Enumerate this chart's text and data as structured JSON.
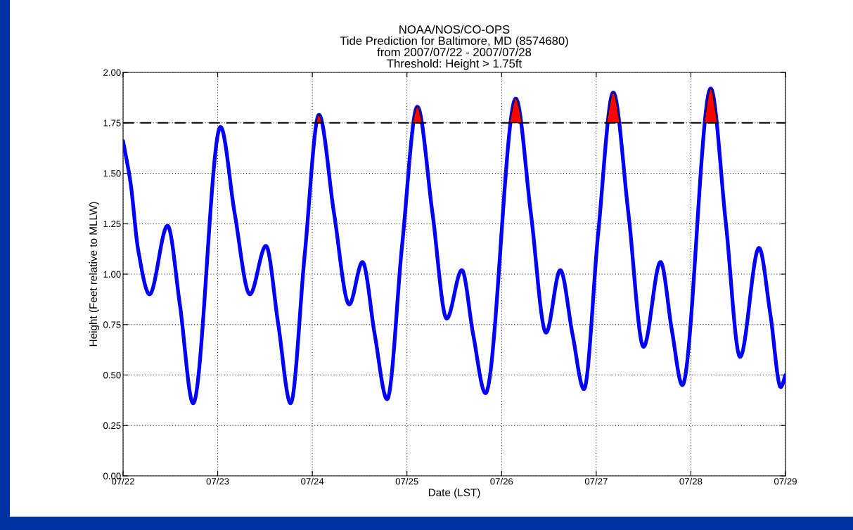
{
  "chart_data": {
    "type": "line",
    "title": "NOAA/NOS/CO-OPS\nTide Prediction for Baltimore, MD (8574680)\nfrom 2007/07/22 - 2007/07/28\nThreshold: Height > 1.75ft",
    "xlabel": "Date (LST)",
    "ylabel": "Height (Feet relative to MLLW)",
    "series": [
      {
        "color": "#0000ff",
        "x": [
          "2007-07-22T00:00",
          "2007-07-22T01:55",
          "2007-07-22T03:50",
          "2007-07-22T06:43",
          "2007-07-22T11:17",
          "2007-07-22T14:24",
          "2007-07-22T17:46",
          "2007-07-23T00:43",
          "2007-07-23T04:19",
          "2007-07-23T08:10",
          "2007-07-23T12:14",
          "2007-07-23T15:22",
          "2007-07-23T18:29",
          "2007-07-23T22:05",
          "2007-07-24T01:41",
          "2007-07-24T05:31",
          "2007-07-24T09:22",
          "2007-07-24T12:43",
          "2007-07-24T15:50",
          "2007-07-24T18:58",
          "2007-07-24T22:48",
          "2007-07-25T02:38",
          "2007-07-25T06:29",
          "2007-07-25T10:05",
          "2007-07-25T13:55",
          "2007-07-25T16:48",
          "2007-07-25T19:55",
          "2007-07-26T03:36",
          "2007-07-26T07:26",
          "2007-07-26T11:17",
          "2007-07-26T14:53",
          "2007-07-26T18:00",
          "2007-07-26T20:53",
          "2007-07-27T00:29",
          "2007-07-27T04:19",
          "2007-07-27T08:10",
          "2007-07-27T12:00",
          "2007-07-27T16:19",
          "2007-07-27T19:12",
          "2007-07-27T21:50",
          "2007-07-28T05:02",
          "2007-07-28T08:53",
          "2007-07-28T12:29",
          "2007-07-28T17:17",
          "2007-07-28T20:10",
          "2007-07-28T22:48",
          "2007-07-29T00:00"
        ],
        "values": [
          1.66,
          1.45,
          1.12,
          0.9,
          1.24,
          0.85,
          0.36,
          1.73,
          1.3,
          0.9,
          1.14,
          0.75,
          0.36,
          1.1,
          1.79,
          1.3,
          0.85,
          1.06,
          0.7,
          0.38,
          1.15,
          1.83,
          1.3,
          0.78,
          1.02,
          0.7,
          0.41,
          1.87,
          1.3,
          0.71,
          1.02,
          0.7,
          0.43,
          1.2,
          1.9,
          1.3,
          0.64,
          1.06,
          0.72,
          0.45,
          1.92,
          1.25,
          0.59,
          1.13,
          0.8,
          0.44,
          0.5
        ]
      },
      {
        "type": "area",
        "color": "#ff0000",
        "x": [
          "2007-07-24T00:58",
          "2007-07-24T01:41",
          "2007-07-24T02:24",
          null,
          "2007-07-25T01:26",
          "2007-07-25T02:38",
          "2007-07-25T03:50",
          null,
          "2007-07-26T02:02",
          "2007-07-26T03:36",
          "2007-07-26T05:10",
          null,
          "2007-07-27T02:38",
          "2007-07-27T04:19",
          "2007-07-27T06:00",
          null,
          "2007-07-28T03:22",
          "2007-07-28T05:02",
          "2007-07-28T06:43"
        ],
        "values": [
          1.75,
          1.79,
          1.75,
          null,
          1.75,
          1.83,
          1.75,
          null,
          1.75,
          1.87,
          1.75,
          null,
          1.75,
          1.9,
          1.75,
          null,
          1.75,
          1.92,
          1.75
        ]
      }
    ],
    "xlim": [
      "2007-07-22",
      "2007-07-29"
    ],
    "xticks": [
      {
        "value": "2007-07-22",
        "label": "07/22"
      },
      {
        "value": "2007-07-23",
        "label": "07/23"
      },
      {
        "value": "2007-07-24",
        "label": "07/24"
      },
      {
        "value": "2007-07-25",
        "label": "07/25"
      },
      {
        "value": "2007-07-26",
        "label": "07/26"
      },
      {
        "value": "2007-07-27",
        "label": "07/27"
      },
      {
        "value": "2007-07-28",
        "label": "07/28"
      },
      {
        "value": "2007-07-29",
        "label": "07/29"
      }
    ],
    "ylim": [
      0,
      2
    ],
    "yticks": [
      {
        "value": 0,
        "label": "0.00"
      },
      {
        "value": 0.25,
        "label": "0.25"
      },
      {
        "value": 0.5,
        "label": "0.50"
      },
      {
        "value": 0.75,
        "label": "0.75"
      },
      {
        "value": 1,
        "label": "1.00"
      },
      {
        "value": 1.25,
        "label": "1.25"
      },
      {
        "value": 1.5,
        "label": "1.50"
      },
      {
        "value": 1.75,
        "label": "1.75"
      },
      {
        "value": 2,
        "label": "2.00"
      }
    ],
    "ref_lines": [
      {
        "axis": "y",
        "value": 1.75,
        "label": null,
        "color": "#000000",
        "line_style": "dashed"
      }
    ],
    "grid": true,
    "legend": false,
    "marker": "none",
    "line_style": "solid"
  }
}
